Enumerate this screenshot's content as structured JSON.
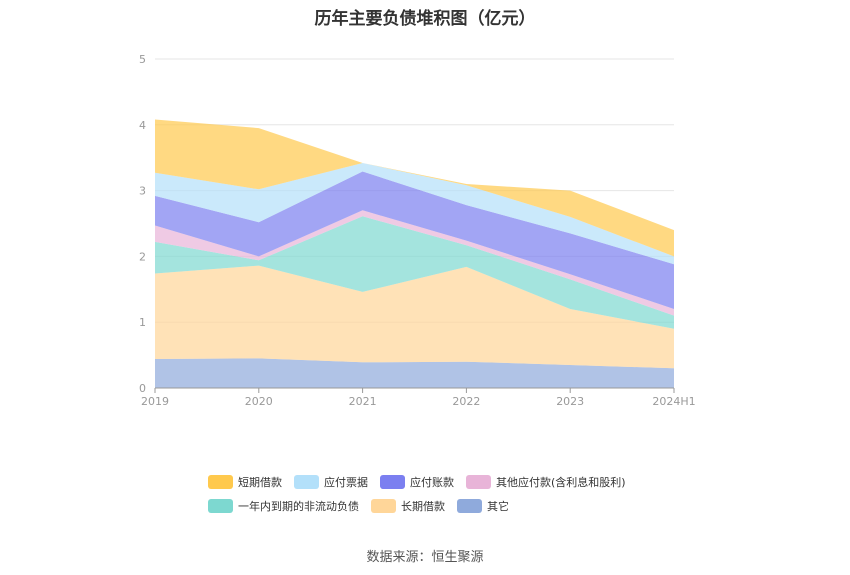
{
  "title": "历年主要负债堆积图（亿元）",
  "source": "数据来源：恒生聚源",
  "chart_data": {
    "type": "area",
    "stacked": true,
    "categories": [
      "2019",
      "2020",
      "2021",
      "2022",
      "2023",
      "2024H1"
    ],
    "ylim": [
      0,
      5
    ],
    "yticks": [
      "0",
      "1",
      "2",
      "3",
      "4",
      "5"
    ],
    "grid": true,
    "legend_position": "bottom",
    "series": [
      {
        "name": "其它",
        "color": "#8faadc",
        "values": [
          0.44,
          0.45,
          0.39,
          0.4,
          0.35,
          0.3
        ]
      },
      {
        "name": "长期借款",
        "color": "#ffd699",
        "values": [
          1.3,
          1.41,
          1.07,
          1.44,
          0.85,
          0.6
        ]
      },
      {
        "name": "一年内到期的非流动负债",
        "color": "#7dd8d0",
        "values": [
          0.48,
          0.08,
          1.15,
          0.33,
          0.45,
          0.2
        ]
      },
      {
        "name": "其他应付款(含利息和股利)",
        "color": "#e8b4d8",
        "values": [
          0.25,
          0.06,
          0.09,
          0.07,
          0.08,
          0.1
        ]
      },
      {
        "name": "应付账款",
        "color": "#7b7ff0",
        "values": [
          0.45,
          0.52,
          0.59,
          0.54,
          0.62,
          0.68
        ]
      },
      {
        "name": "应付票据",
        "color": "#b3e0fa",
        "values": [
          0.35,
          0.5,
          0.13,
          0.3,
          0.25,
          0.12
        ]
      },
      {
        "name": "短期借款",
        "color": "#ffc94d",
        "values": [
          0.81,
          0.93,
          0.0,
          0.02,
          0.4,
          0.4
        ]
      }
    ],
    "legend_order": [
      "短期借款",
      "应付票据",
      "应付账款",
      "其他应付款(含利息和股利)",
      "一年内到期的非流动负债",
      "长期借款",
      "其它"
    ]
  }
}
